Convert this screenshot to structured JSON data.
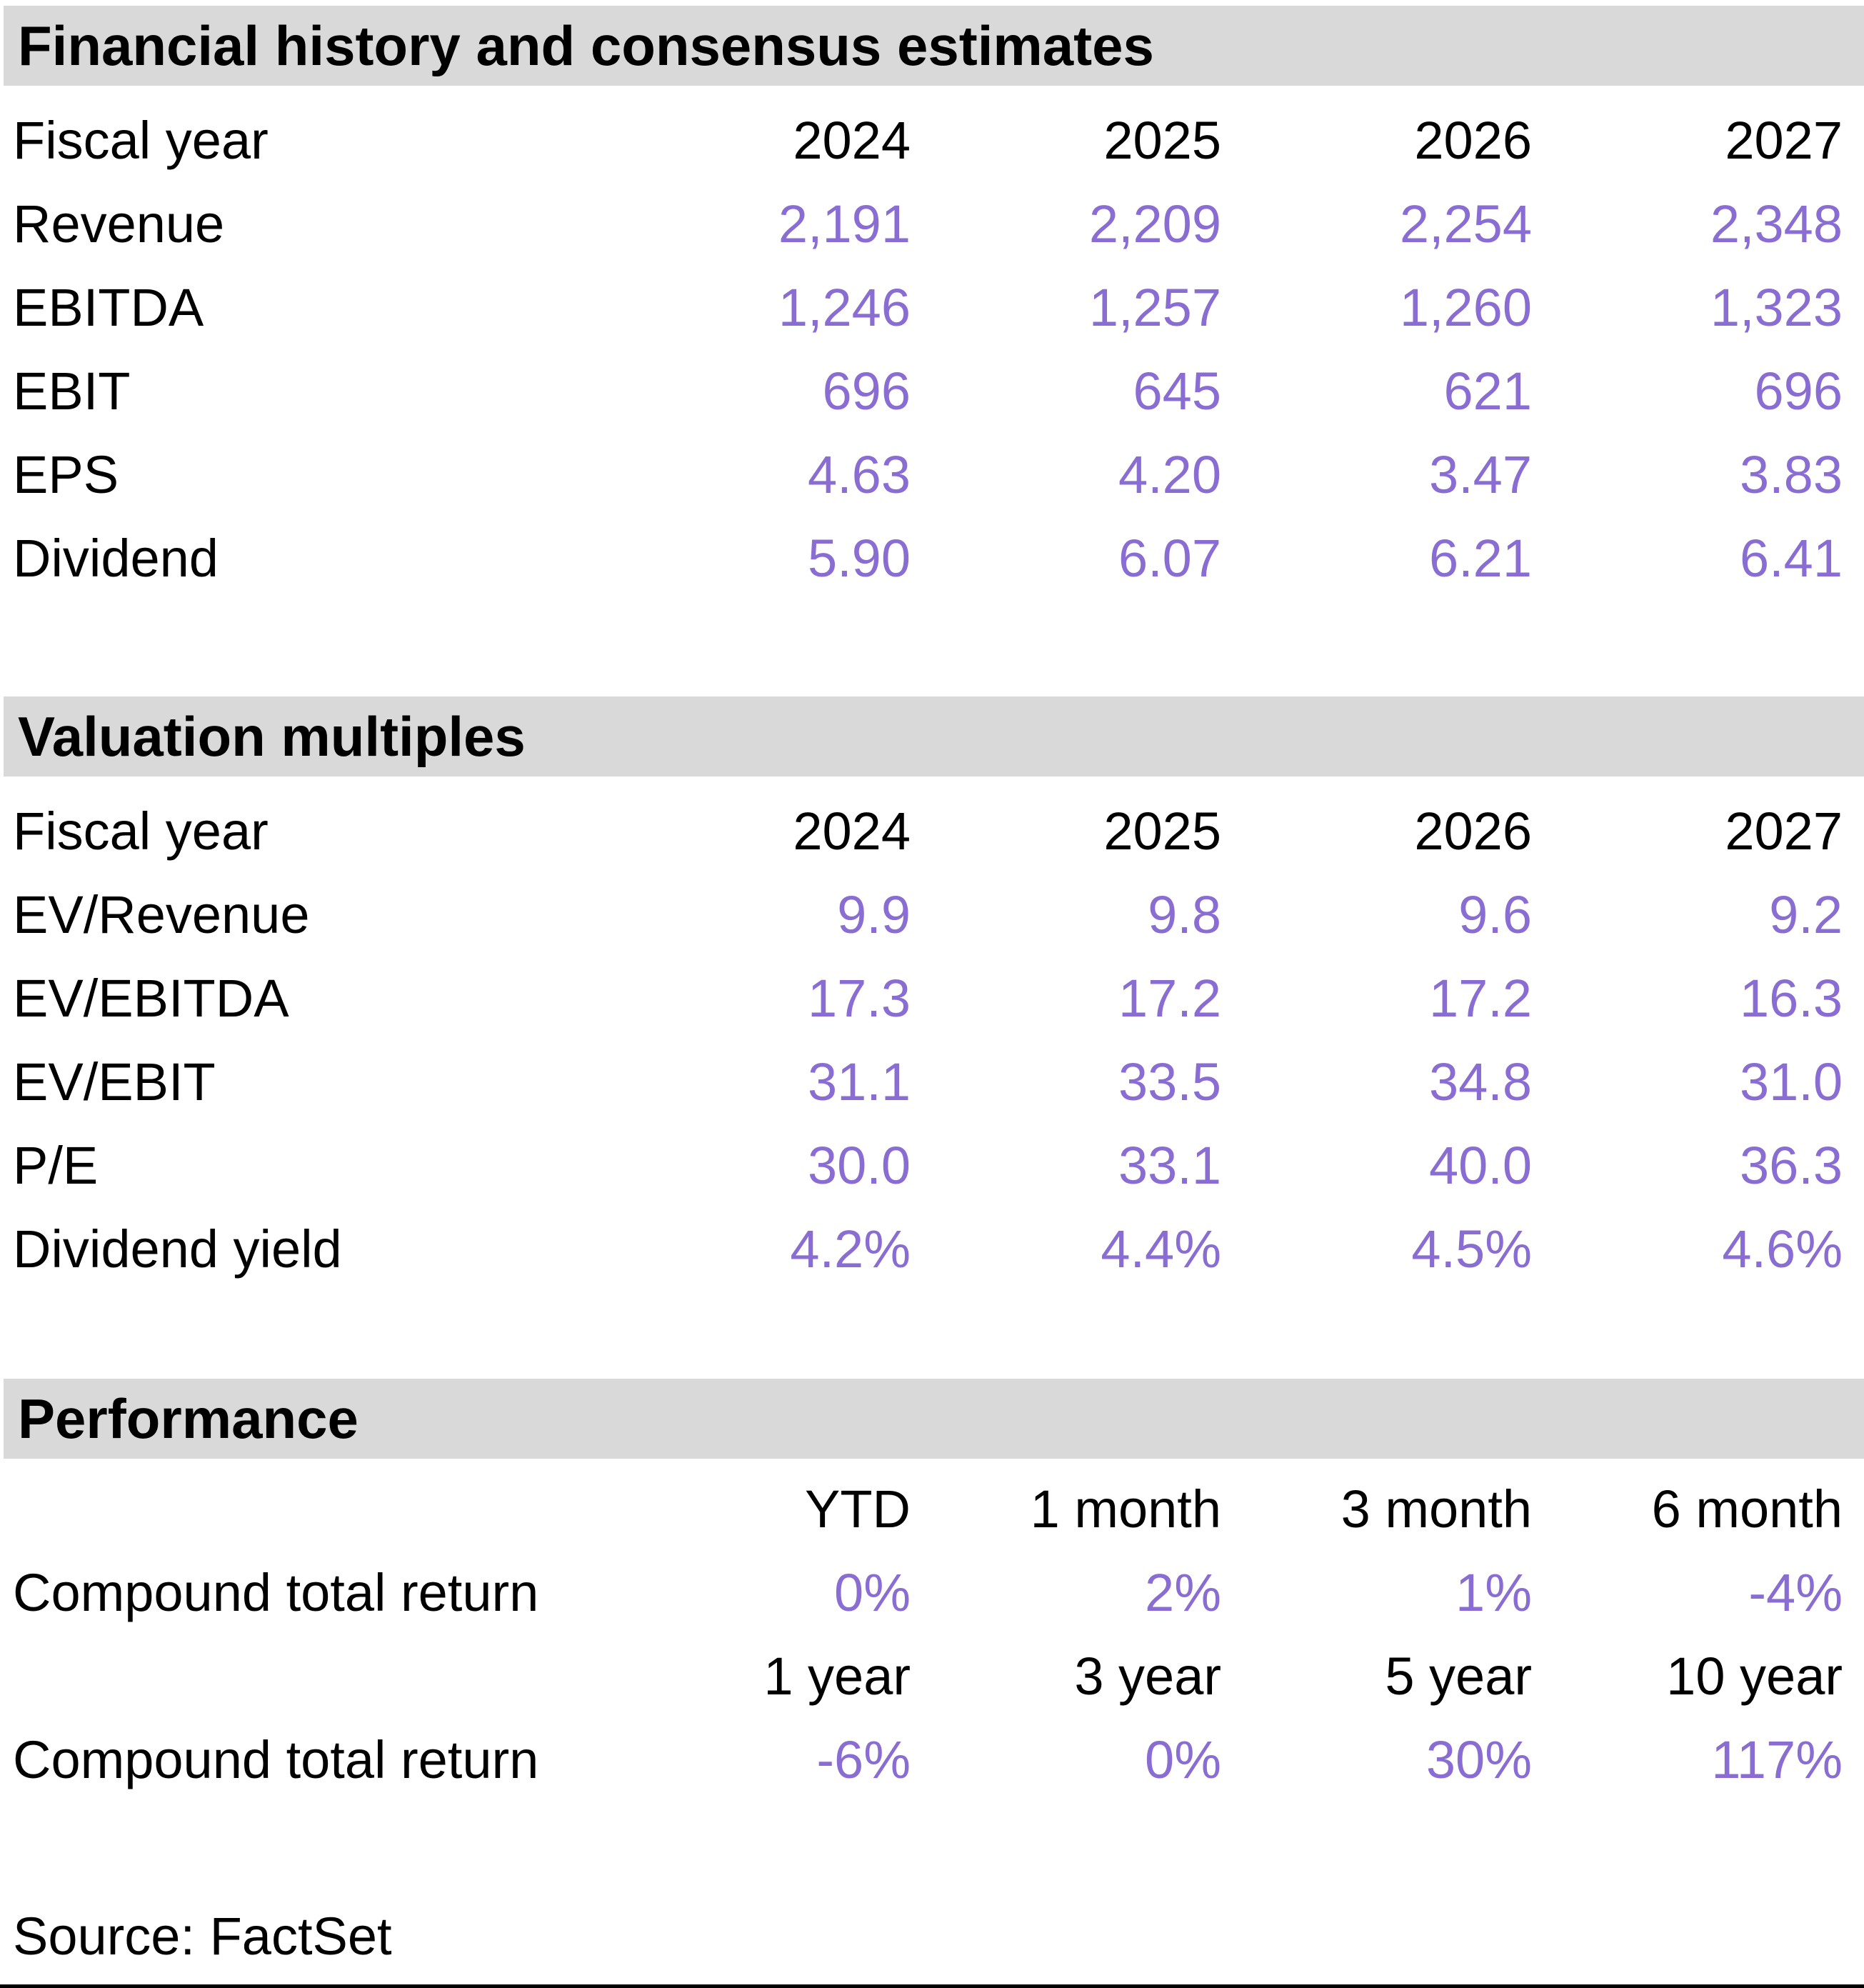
{
  "colors": {
    "accent_purple": "#8a6dd2",
    "section_header_bg": "#d9d9d9",
    "text": "#000000"
  },
  "sections": {
    "financial": {
      "title": "Financial history and consensus estimates",
      "fiscal_label": "Fiscal year",
      "years": [
        "2024",
        "2025",
        "2026",
        "2027"
      ],
      "rows": [
        {
          "label": "Revenue",
          "values": [
            "2,191",
            "2,209",
            "2,254",
            "2,348"
          ]
        },
        {
          "label": "EBITDA",
          "values": [
            "1,246",
            "1,257",
            "1,260",
            "1,323"
          ]
        },
        {
          "label": "EBIT",
          "values": [
            "696",
            "645",
            "621",
            "696"
          ]
        },
        {
          "label": "EPS",
          "values": [
            "4.63",
            "4.20",
            "3.47",
            "3.83"
          ]
        },
        {
          "label": "Dividend",
          "values": [
            "5.90",
            "6.07",
            "6.21",
            "6.41"
          ]
        }
      ]
    },
    "valuation": {
      "title": "Valuation multiples",
      "fiscal_label": "Fiscal year",
      "years": [
        "2024",
        "2025",
        "2026",
        "2027"
      ],
      "rows": [
        {
          "label": "EV/Revenue",
          "values": [
            "9.9",
            "9.8",
            "9.6",
            "9.2"
          ]
        },
        {
          "label": "EV/EBITDA",
          "values": [
            "17.3",
            "17.2",
            "17.2",
            "16.3"
          ]
        },
        {
          "label": "EV/EBIT",
          "values": [
            "31.1",
            "33.5",
            "34.8",
            "31.0"
          ]
        },
        {
          "label": "P/E",
          "values": [
            "30.0",
            "33.1",
            "40.0",
            "36.3"
          ]
        },
        {
          "label": "Dividend yield",
          "values": [
            "4.2%",
            "4.4%",
            "4.5%",
            "4.6%"
          ]
        }
      ]
    },
    "performance": {
      "title": "Performance",
      "period_headers": [
        "YTD",
        "1 month",
        "3 month",
        "6 month"
      ],
      "row1_label": "Compound total return",
      "row1_values": [
        "0%",
        "2%",
        "1%",
        "-4%"
      ],
      "year_headers": [
        "1 year",
        "3 year",
        "5 year",
        "10 year"
      ],
      "row2_label": "Compound total return",
      "row2_values": [
        "-6%",
        "0%",
        "30%",
        "117%"
      ]
    }
  },
  "footer": {
    "source": "Source: FactSet"
  }
}
